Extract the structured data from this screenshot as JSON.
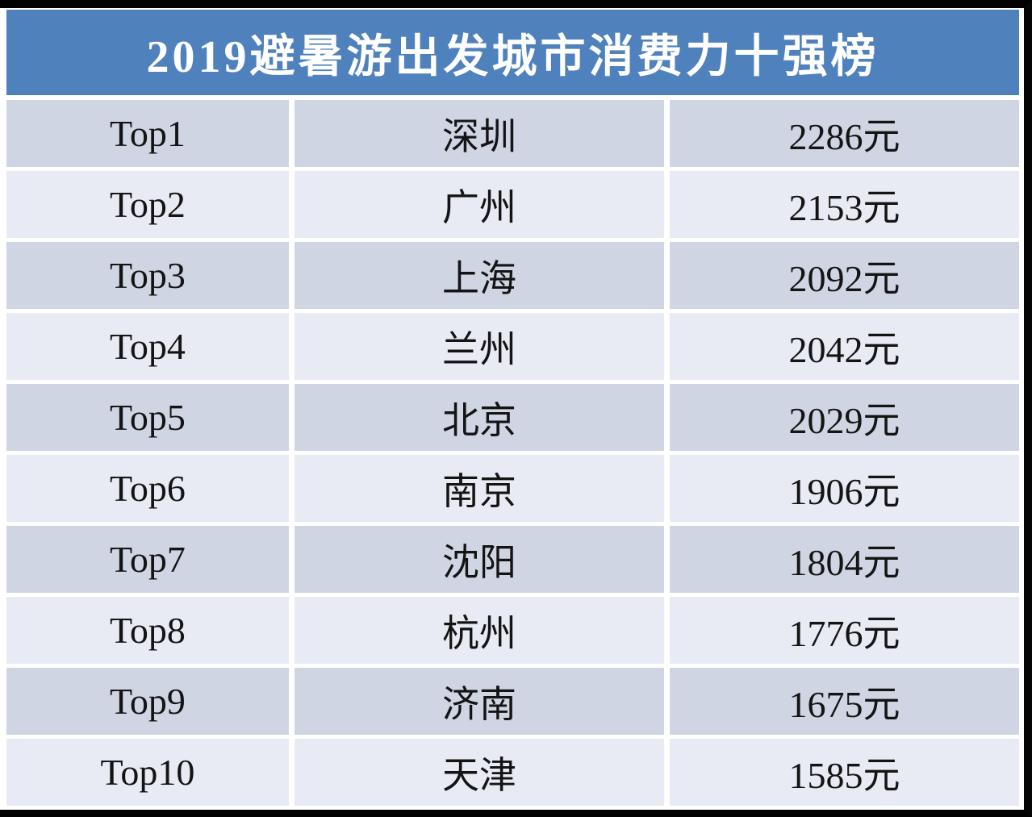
{
  "header": {
    "title": "2019避暑游出发城市消费力十强榜"
  },
  "colors": {
    "header_bg": "#4F81BD",
    "header_text": "#FFFFFF",
    "row_dark_bg": "#CFD5E3",
    "row_light_bg": "#E8EBF3",
    "body_text": "#141414",
    "outer_frame": "#000000"
  },
  "table": {
    "rows": [
      {
        "rank": "Top1",
        "city": "深圳",
        "price": "2286元"
      },
      {
        "rank": "Top2",
        "city": "广州",
        "price": "2153元"
      },
      {
        "rank": "Top3",
        "city": "上海",
        "price": "2092元"
      },
      {
        "rank": "Top4",
        "city": "兰州",
        "price": "2042元"
      },
      {
        "rank": "Top5",
        "city": "北京",
        "price": "2029元"
      },
      {
        "rank": "Top6",
        "city": "南京",
        "price": "1906元"
      },
      {
        "rank": "Top7",
        "city": "沈阳",
        "price": "1804元"
      },
      {
        "rank": "Top8",
        "city": "杭州",
        "price": "1776元"
      },
      {
        "rank": "Top9",
        "city": "济南",
        "price": "1675元"
      },
      {
        "rank": "Top10",
        "city": "天津",
        "price": "1585元"
      }
    ]
  },
  "chart_data": {
    "type": "table",
    "title": "2019避暑游出发城市消费力十强榜",
    "categories": [
      "Top1",
      "Top2",
      "Top3",
      "Top4",
      "Top5",
      "Top6",
      "Top7",
      "Top8",
      "Top9",
      "Top10"
    ],
    "cities": [
      "深圳",
      "广州",
      "上海",
      "兰州",
      "北京",
      "南京",
      "沈阳",
      "杭州",
      "济南",
      "天津"
    ],
    "values_yuan": [
      2286,
      2153,
      2092,
      2042,
      2029,
      1906,
      1804,
      1776,
      1675,
      1585
    ],
    "unit": "元",
    "legend_position": "none",
    "grid": false
  }
}
